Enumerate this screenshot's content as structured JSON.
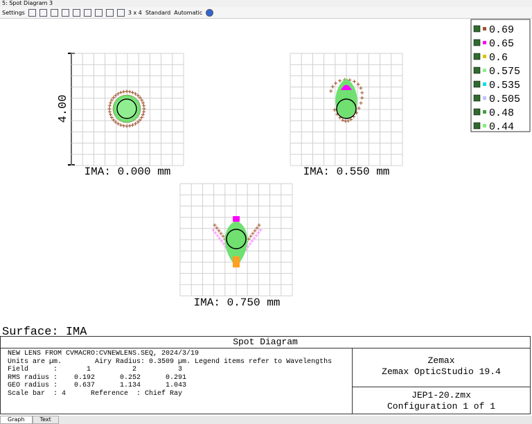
{
  "window": {
    "title": "5: Spot Diagram 3"
  },
  "toolbar": {
    "settings": "Settings",
    "layout": "3 x 4",
    "mode": "Standard",
    "scale": "Automatic"
  },
  "plot": {
    "scale_bar": "4.00",
    "fields": [
      {
        "label": "IMA: 0.000 mm"
      },
      {
        "label": "IMA: 0.550 mm"
      },
      {
        "label": "IMA: 0.750 mm"
      }
    ],
    "surface": "Surface: IMA"
  },
  "legend": [
    {
      "label": "0.69",
      "color": "#a0522d"
    },
    {
      "label": "0.65",
      "color": "#ff00ff"
    },
    {
      "label": "0.6",
      "color": "#e0c000"
    },
    {
      "label": "0.575",
      "color": "#90ee90"
    },
    {
      "label": "0.535",
      "color": "#00e0e0"
    },
    {
      "label": "0.505",
      "color": "#c0c0ff"
    },
    {
      "label": "0.48",
      "color": "#40a040"
    },
    {
      "label": "0.44",
      "color": "#80f080"
    }
  ],
  "info": {
    "title": "Spot Diagram",
    "lines": [
      "NEW LENS FROM CVMACRO:CVNEWLENS.SEQ, 2024/3/19",
      "Units are µm.        Airy Radius: 0.3509 µm. Legend items refer to Wavelengths",
      "Field      :       1          2          3",
      "RMS radius :    0.192      0.252      0.291",
      "GEO radius :    0.637      1.134      1.043",
      "Scale bar  : 4      Reference  : Chief Ray"
    ],
    "company": "Zemax",
    "product": "Zemax OpticStudio 19.4",
    "file": "JEP1-20.zmx",
    "config": "Configuration 1 of 1"
  },
  "tabs": [
    "Graph",
    "Text"
  ]
}
